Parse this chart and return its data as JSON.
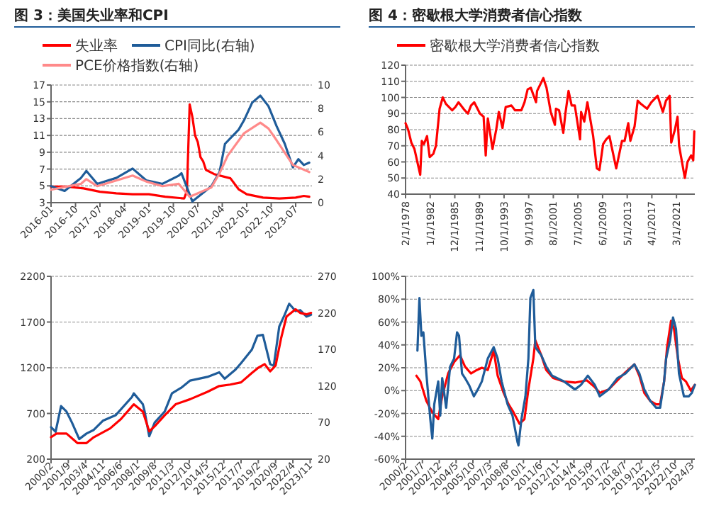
{
  "chart_data": [
    {
      "type": "line",
      "title": "图 3：美国失业率和CPI",
      "grid": "y",
      "legend": "top",
      "xlim": [
        "2016-01",
        "2024-01"
      ],
      "xticks": [
        {
          "value": "2016-01",
          "label": "2016-01"
        },
        {
          "value": "2016-10",
          "label": "2016-10"
        },
        {
          "value": "2017-07",
          "label": "2017-07"
        },
        {
          "value": "2018-04",
          "label": "2018-04"
        },
        {
          "value": "2019-01",
          "label": "2019-01"
        },
        {
          "value": "2019-10",
          "label": "2019-10"
        },
        {
          "value": "2020-07",
          "label": "2020-07"
        },
        {
          "value": "2021-04",
          "label": "2021-04"
        },
        {
          "value": "2022-01",
          "label": "2022-01"
        },
        {
          "value": "2022-10",
          "label": "2022-10"
        },
        {
          "value": "2023-07",
          "label": "2023-07"
        }
      ],
      "ylim": [
        3,
        17
      ],
      "yticks": [
        3,
        5,
        7,
        9,
        11,
        13,
        15,
        17
      ],
      "y2lim": [
        0,
        10
      ],
      "y2ticks": [
        0,
        2,
        4,
        6,
        8,
        10
      ],
      "series": [
        {
          "name": "失业率",
          "color": "#ff0000",
          "x": [
            "2016-01",
            "2016-07",
            "2017-01",
            "2017-07",
            "2018-01",
            "2018-07",
            "2019-01",
            "2019-07",
            "2020-02",
            "2020-03",
            "2020-04",
            "2020-05",
            "2020-06",
            "2020-07",
            "2020-08",
            "2020-09",
            "2020-10",
            "2021-01",
            "2021-07",
            "2021-10",
            "2022-01",
            "2022-07",
            "2023-01",
            "2023-07",
            "2023-10",
            "2023-12"
          ],
          "values": [
            4.9,
            4.9,
            4.7,
            4.3,
            4.1,
            4,
            4,
            3.7,
            3.5,
            4.4,
            14.7,
            13.2,
            11,
            10.2,
            8.4,
            7.9,
            6.9,
            6.4,
            5.9,
            4.6,
            4,
            3.6,
            3.5,
            3.6,
            3.8,
            3.7
          ]
        },
        {
          "name": "CPI同比(右轴)",
          "color": "#1f5c99",
          "axis": "y2",
          "x": [
            "2016-01",
            "2016-06",
            "2016-12",
            "2017-02",
            "2017-06",
            "2018-01",
            "2018-07",
            "2018-12",
            "2019-06",
            "2019-12",
            "2020-01",
            "2020-05",
            "2020-12",
            "2021-03",
            "2021-05",
            "2021-10",
            "2021-12",
            "2022-03",
            "2022-06",
            "2022-09",
            "2022-12",
            "2023-03",
            "2023-06",
            "2023-08",
            "2023-10",
            "2023-12"
          ],
          "values": [
            1.4,
            1,
            2.1,
            2.7,
            1.6,
            2.1,
            2.9,
            1.9,
            1.6,
            2.3,
            2.5,
            0.1,
            1.4,
            2.6,
            5,
            6.2,
            7,
            8.5,
            9.1,
            8.2,
            6.5,
            5,
            3,
            3.7,
            3.2,
            3.4
          ]
        },
        {
          "name": "PCE价格指数(右轴)",
          "color": "#ff8a8a",
          "axis": "y2",
          "x": [
            "2016-01",
            "2016-12",
            "2017-02",
            "2017-06",
            "2018-07",
            "2018-12",
            "2019-06",
            "2019-12",
            "2020-04",
            "2020-12",
            "2021-03",
            "2021-06",
            "2021-12",
            "2022-06",
            "2022-09",
            "2022-12",
            "2023-06",
            "2023-12"
          ],
          "values": [
            1.1,
            1.6,
            2,
            1.4,
            2.3,
            1.8,
            1.4,
            1.6,
            0.5,
            1.3,
            2.5,
            4,
            5.9,
            6.8,
            6.3,
            5.3,
            3.2,
            2.6
          ]
        }
      ]
    },
    {
      "type": "line",
      "title": "图 4：密歇根大学消费者信心指数",
      "grid": "y",
      "legend": "top",
      "xlim": [
        "1978-02",
        "2024-02"
      ],
      "xticks": [
        {
          "value": "1978-02",
          "label": "2/1/1978"
        },
        {
          "value": "1982-01",
          "label": "1/1/1982"
        },
        {
          "value": "1985-12",
          "label": "12/1/1985"
        },
        {
          "value": "1989-11",
          "label": "11/1/1989"
        },
        {
          "value": "1993-10",
          "label": "10/1/1993"
        },
        {
          "value": "1997-09",
          "label": "9/1/1997"
        },
        {
          "value": "2001-08",
          "label": "8/1/2001"
        },
        {
          "value": "2005-07",
          "label": "7/1/2005"
        },
        {
          "value": "2009-06",
          "label": "6/1/2009"
        },
        {
          "value": "2013-05",
          "label": "5/1/2013"
        },
        {
          "value": "2017-04",
          "label": "4/1/2017"
        },
        {
          "value": "2021-03",
          "label": "3/1/2021"
        }
      ],
      "ylim": [
        40,
        120
      ],
      "yticks": [
        40,
        50,
        60,
        70,
        80,
        90,
        100,
        110,
        120
      ],
      "series": [
        {
          "name": "密歇根大学消费者信心指数",
          "color": "#ff0000",
          "x": [
            "1978-02",
            "1978-07",
            "1979-01",
            "1979-07",
            "1980-06",
            "1980-09",
            "1981-01",
            "1981-07",
            "1981-12",
            "1982-07",
            "1982-12",
            "1983-07",
            "1984-01",
            "1984-07",
            "1985-07",
            "1986-01",
            "1986-07",
            "1987-07",
            "1988-01",
            "1988-07",
            "1989-01",
            "1989-12",
            "1990-07",
            "1990-11",
            "1991-03",
            "1991-12",
            "1992-07",
            "1992-12",
            "1993-07",
            "1994-01",
            "1994-12",
            "1995-07",
            "1996-07",
            "1997-01",
            "1997-07",
            "1998-01",
            "1998-11",
            "1999-01",
            "2000-01",
            "2000-07",
            "2001-03",
            "2001-11",
            "2002-01",
            "2002-07",
            "2003-03",
            "2003-07",
            "2004-01",
            "2004-07",
            "2005-01",
            "2005-11",
            "2006-01",
            "2006-07",
            "2007-01",
            "2007-12",
            "2008-07",
            "2008-12",
            "2009-07",
            "2010-01",
            "2010-07",
            "2011-08",
            "2012-07",
            "2012-12",
            "2013-07",
            "2013-11",
            "2014-07",
            "2015-01",
            "2015-07",
            "2016-07",
            "2017-03",
            "2018-03",
            "2019-01",
            "2019-07",
            "2020-02",
            "2020-05",
            "2020-12",
            "2021-05",
            "2021-08",
            "2022-07",
            "2022-12",
            "2023-07",
            "2023-11",
            "2023-12",
            "2024-01"
          ],
          "values": [
            84,
            80,
            72,
            68,
            52,
            73,
            71,
            76,
            63,
            65,
            70,
            93,
            100,
            96,
            92,
            94,
            97,
            92,
            90,
            95,
            97,
            90,
            88,
            64,
            87,
            68,
            80,
            91,
            81,
            94,
            95,
            92,
            92,
            97,
            105,
            106,
            97,
            104,
            112,
            106,
            91,
            83,
            93,
            92,
            78,
            90,
            104,
            95,
            95,
            74,
            91,
            85,
            97,
            76,
            56,
            55,
            71,
            74,
            76,
            56,
            73,
            73,
            84,
            73,
            82,
            98,
            96,
            93,
            97,
            101,
            91,
            98,
            101,
            72,
            80,
            88,
            70,
            50,
            60,
            64,
            61,
            70,
            79
          ]
        }
      ]
    },
    {
      "type": "line",
      "xlim": [
        "2000-02",
        "2024-01"
      ],
      "xticks": [
        {
          "value": "2000-02",
          "label": "2000/2"
        },
        {
          "value": "2001-09",
          "label": "2001/9"
        },
        {
          "value": "2003-04",
          "label": "2003/4"
        },
        {
          "value": "2004-11",
          "label": "2004/11"
        },
        {
          "value": "2006-06",
          "label": "2006/6"
        },
        {
          "value": "2008-01",
          "label": "2008/1"
        },
        {
          "value": "2009-08",
          "label": "2009/8"
        },
        {
          "value": "2011-03",
          "label": "2011/3"
        },
        {
          "value": "2012-10",
          "label": "2012/10"
        },
        {
          "value": "2014-05",
          "label": "2014/5"
        },
        {
          "value": "2015-12",
          "label": "2015/12"
        },
        {
          "value": "2017-07",
          "label": "2017/7"
        },
        {
          "value": "2019-02",
          "label": "2019/2"
        },
        {
          "value": "2020-09",
          "label": "2020/9"
        },
        {
          "value": "2022-04",
          "label": "2022/4"
        },
        {
          "value": "2023-11",
          "label": "2023/11"
        }
      ],
      "ylim": [
        200,
        2200
      ],
      "yticks": [
        200,
        700,
        1200,
        1700,
        2200
      ],
      "y2lim": [
        20,
        270
      ],
      "y2ticks": [
        20,
        70,
        120,
        170,
        220,
        270
      ],
      "grid": "y",
      "series": [
        {
          "color": "#1f5c99",
          "x": [
            "2000-02",
            "2000-07",
            "2001-01",
            "2001-07",
            "2002-01",
            "2002-09",
            "2003-05",
            "2004-01",
            "2004-11",
            "2006-01",
            "2007-07",
            "2007-09",
            "2008-07",
            "2008-09",
            "2009-02",
            "2009-08",
            "2010-07",
            "2011-03",
            "2012-01",
            "2012-11",
            "2014-06",
            "2015-07",
            "2016-01",
            "2017-01",
            "2017-07",
            "2018-07",
            "2019-01",
            "2019-07",
            "2020-03",
            "2020-07",
            "2021-01",
            "2021-07",
            "2021-12",
            "2022-07",
            "2022-12",
            "2023-07",
            "2023-12"
          ],
          "values": [
            550,
            500,
            780,
            720,
            600,
            420,
            480,
            520,
            620,
            680,
            880,
            920,
            800,
            720,
            450,
            600,
            720,
            920,
            980,
            1060,
            1100,
            1150,
            1080,
            1180,
            1250,
            1400,
            1550,
            1560,
            1240,
            1220,
            1650,
            1780,
            1900,
            1820,
            1830,
            1760,
            1780
          ]
        },
        {
          "color": "#ff0000",
          "axis": "y2",
          "x": [
            "2000-02",
            "2000-08",
            "2001-07",
            "2002-07",
            "2003-05",
            "2004-01",
            "2005-07",
            "2006-07",
            "2007-09",
            "2008-07",
            "2009-02",
            "2009-08",
            "2010-07",
            "2011-07",
            "2012-11",
            "2014-06",
            "2015-07",
            "2016-07",
            "2017-07",
            "2018-07",
            "2019-02",
            "2019-09",
            "2020-03",
            "2020-09",
            "2021-03",
            "2021-09",
            "2022-07",
            "2022-12",
            "2023-07",
            "2023-12"
          ],
          "values": [
            50,
            55,
            55,
            42,
            42,
            50,
            62,
            75,
            95,
            85,
            58,
            65,
            80,
            95,
            102,
            112,
            120,
            122,
            125,
            138,
            145,
            150,
            140,
            148,
            185,
            215,
            225,
            220,
            218,
            220
          ]
        }
      ]
    },
    {
      "type": "line",
      "xlim": [
        "2000-02",
        "2024-06"
      ],
      "xticks": [
        {
          "value": "2000-02",
          "label": "2000/2"
        },
        {
          "value": "2001-07",
          "label": "2001/7"
        },
        {
          "value": "2002-12",
          "label": "2002/12"
        },
        {
          "value": "2004-05",
          "label": "2004/5"
        },
        {
          "value": "2005-10",
          "label": "2005/10"
        },
        {
          "value": "2007-03",
          "label": "2007/3"
        },
        {
          "value": "2008-08",
          "label": "2008/8"
        },
        {
          "value": "2010-01",
          "label": "2010/1"
        },
        {
          "value": "2011-06",
          "label": "2011/6"
        },
        {
          "value": "2012-11",
          "label": "2012/11"
        },
        {
          "value": "2014-04",
          "label": "2014/4"
        },
        {
          "value": "2015-09",
          "label": "2015/9"
        },
        {
          "value": "2017-02",
          "label": "2017/2"
        },
        {
          "value": "2018-07",
          "label": "2018/7"
        },
        {
          "value": "2019-12",
          "label": "2019/12"
        },
        {
          "value": "2021-05",
          "label": "2021/5"
        },
        {
          "value": "2022-10",
          "label": "2022/10"
        },
        {
          "value": "2024-03",
          "label": "2024/3"
        }
      ],
      "ylim": [
        -60,
        100
      ],
      "yticks": [
        {
          "value": -60,
          "label": "-60%"
        },
        {
          "value": -40,
          "label": "-40%"
        },
        {
          "value": -20,
          "label": "-20%"
        },
        {
          "value": 0,
          "label": "0%"
        },
        {
          "value": 20,
          "label": "20%"
        },
        {
          "value": 40,
          "label": "40%"
        },
        {
          "value": 60,
          "label": "60%"
        },
        {
          "value": 80,
          "label": "80%"
        },
        {
          "value": 100,
          "label": "100%"
        }
      ],
      "grid": "y",
      "series": [
        {
          "color": "#ff0000",
          "x": [
            "2001-01",
            "2001-05",
            "2001-11",
            "2002-05",
            "2002-11",
            "2003-03",
            "2003-09",
            "2004-03",
            "2004-09",
            "2005-02",
            "2005-08",
            "2006-02",
            "2006-07",
            "2007-01",
            "2007-07",
            "2007-11",
            "2008-05",
            "2008-10",
            "2009-03",
            "2009-09",
            "2010-02",
            "2010-06",
            "2010-11",
            "2011-01",
            "2011-07",
            "2011-12",
            "2012-07",
            "2013-06",
            "2014-05",
            "2015-05",
            "2016-01",
            "2016-06",
            "2017-03",
            "2017-12",
            "2018-08",
            "2019-05",
            "2019-10",
            "2020-03",
            "2020-09",
            "2021-03",
            "2021-07",
            "2021-11",
            "2022-02",
            "2022-06",
            "2022-09",
            "2023-01",
            "2023-05",
            "2023-09",
            "2024-02",
            "2024-06"
          ],
          "values": [
            13,
            8,
            -9,
            -19,
            -25,
            -5,
            15,
            25,
            31,
            21,
            15,
            18,
            20,
            18,
            35,
            13,
            -2,
            -12,
            -19,
            -29,
            -25,
            1,
            28,
            44,
            31,
            18,
            11,
            8,
            7,
            9,
            3,
            -2,
            1,
            9,
            16,
            23,
            13,
            -2,
            -9,
            -12,
            -12,
            8,
            38,
            61,
            54,
            28,
            11,
            8,
            0,
            5
          ]
        },
        {
          "color": "#1f5c99",
          "x": [
            "2001-02",
            "2001-04",
            "2001-06",
            "2001-08",
            "2001-11",
            "2002-03",
            "2002-05",
            "2002-07",
            "2002-11",
            "2003-01",
            "2003-03",
            "2003-07",
            "2003-11",
            "2004-03",
            "2004-06",
            "2004-08",
            "2004-11",
            "2005-02",
            "2005-06",
            "2005-11",
            "2006-03",
            "2006-07",
            "2007-01",
            "2007-07",
            "2007-11",
            "2008-03",
            "2008-09",
            "2009-02",
            "2009-07",
            "2009-08",
            "2009-11",
            "2010-03",
            "2010-06",
            "2010-08",
            "2010-11",
            "2011-01",
            "2011-07",
            "2011-12",
            "2012-06",
            "2013-06",
            "2014-05",
            "2014-11",
            "2015-06",
            "2016-01",
            "2016-06",
            "2017-03",
            "2017-12",
            "2018-08",
            "2019-05",
            "2019-10",
            "2020-03",
            "2020-09",
            "2021-03",
            "2021-07",
            "2021-11",
            "2022-01",
            "2022-05",
            "2022-08",
            "2022-11",
            "2023-02",
            "2023-07",
            "2023-12",
            "2024-03",
            "2024-06"
          ],
          "values": [
            35,
            81,
            48,
            51,
            15,
            -25,
            -42,
            -12,
            8,
            -22,
            11,
            -15,
            21,
            28,
            51,
            48,
            15,
            11,
            5,
            -5,
            1,
            8,
            28,
            38,
            28,
            8,
            -12,
            -22,
            -45,
            -48,
            -25,
            -5,
            28,
            81,
            88,
            38,
            31,
            21,
            13,
            8,
            1,
            5,
            13,
            5,
            -5,
            1,
            11,
            15,
            23,
            15,
            1,
            -9,
            -15,
            -15,
            8,
            28,
            44,
            64,
            54,
            15,
            -5,
            -5,
            -2,
            5
          ]
        }
      ]
    }
  ]
}
